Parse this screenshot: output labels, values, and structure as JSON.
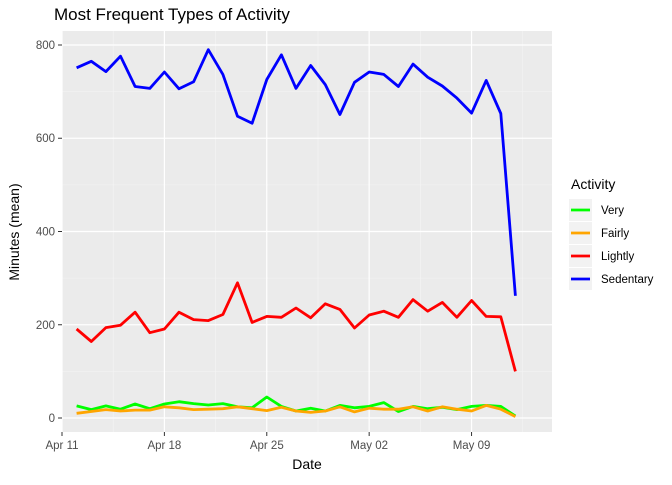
{
  "chart_data": {
    "type": "line",
    "title": "Most Frequent Types of Activity",
    "xlabel": "Date",
    "ylabel": "Minutes (mean)",
    "x_ticks": [
      "Apr 11",
      "Apr 18",
      "Apr 25",
      "May 02",
      "May 09"
    ],
    "y_ticks": [
      0,
      200,
      400,
      600,
      800
    ],
    "ylim": [
      -30,
      830
    ],
    "xlim_days": [
      -1,
      32.5
    ],
    "x": [
      "2016-04-12",
      "2016-04-13",
      "2016-04-14",
      "2016-04-15",
      "2016-04-16",
      "2016-04-17",
      "2016-04-18",
      "2016-04-19",
      "2016-04-20",
      "2016-04-21",
      "2016-04-22",
      "2016-04-23",
      "2016-04-24",
      "2016-04-25",
      "2016-04-26",
      "2016-04-27",
      "2016-04-28",
      "2016-04-29",
      "2016-04-30",
      "2016-05-01",
      "2016-05-02",
      "2016-05-03",
      "2016-05-04",
      "2016-05-05",
      "2016-05-06",
      "2016-05-07",
      "2016-05-08",
      "2016-05-09",
      "2016-05-10",
      "2016-05-11",
      "2016-05-12"
    ],
    "legend_title": "Activity",
    "legend_position": "right",
    "grid": true,
    "series": [
      {
        "name": "Very",
        "color": "#00ff00",
        "values": [
          26,
          18,
          26,
          19,
          30,
          20,
          30,
          35,
          31,
          28,
          31,
          24,
          22,
          45,
          25,
          15,
          21,
          15,
          27,
          22,
          25,
          33,
          14,
          25,
          20,
          23,
          18,
          25,
          27,
          25,
          4
        ]
      },
      {
        "name": "Fairly",
        "color": "#ffa500",
        "values": [
          10,
          14,
          18,
          15,
          17,
          17,
          24,
          22,
          18,
          19,
          20,
          24,
          20,
          16,
          23,
          15,
          12,
          15,
          24,
          13,
          21,
          19,
          19,
          24,
          15,
          24,
          19,
          15,
          27,
          19,
          3
        ]
      },
      {
        "name": "Lightly",
        "color": "#ff0000",
        "values": [
          191,
          164,
          194,
          199,
          227,
          183,
          191,
          227,
          211,
          209,
          222,
          290,
          205,
          218,
          216,
          236,
          215,
          245,
          233,
          193,
          221,
          229,
          216,
          254,
          229,
          248,
          216,
          252,
          218,
          217,
          100
        ]
      },
      {
        "name": "Sedentary",
        "color": "#0000ff",
        "values": [
          751,
          765,
          743,
          776,
          711,
          707,
          742,
          706,
          721,
          790,
          737,
          647,
          632,
          726,
          779,
          707,
          756,
          715,
          651,
          720,
          742,
          737,
          711,
          759,
          731,
          712,
          686,
          654,
          724,
          653,
          262
        ]
      }
    ]
  }
}
